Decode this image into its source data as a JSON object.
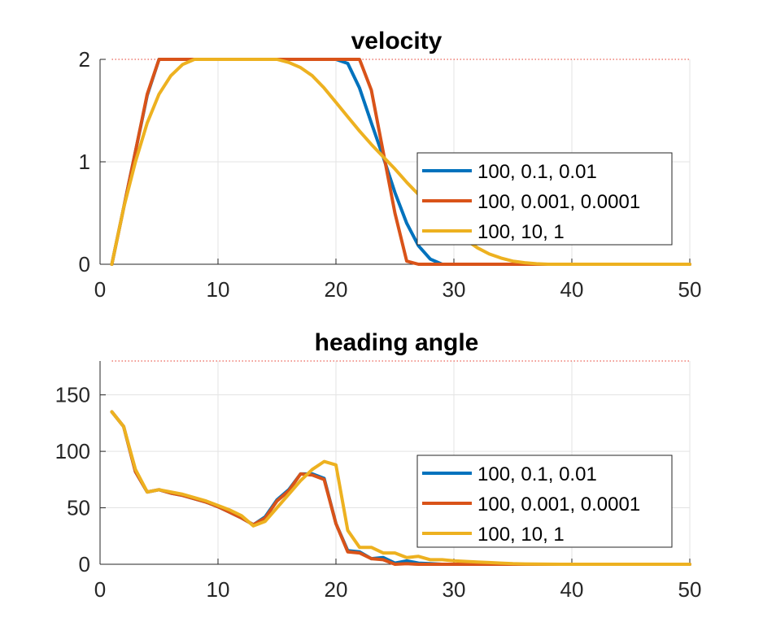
{
  "chart_data": [
    {
      "type": "line",
      "title": "velocity",
      "xlabel": "",
      "ylabel": "",
      "xlim": [
        0,
        50
      ],
      "ylim": [
        0,
        2
      ],
      "xticks": [
        0,
        10,
        20,
        30,
        40,
        50
      ],
      "yticks": [
        0,
        1,
        2
      ],
      "grid": true,
      "legend_position": "center-right",
      "reference_lines": [
        0,
        2
      ],
      "x": [
        1,
        2,
        3,
        4,
        5,
        6,
        7,
        8,
        9,
        10,
        11,
        12,
        13,
        14,
        15,
        16,
        17,
        18,
        19,
        20,
        21,
        22,
        23,
        24,
        25,
        26,
        27,
        28,
        29,
        30,
        31,
        32,
        33,
        34,
        35,
        36,
        37,
        38,
        39,
        40,
        41,
        42,
        43,
        44,
        45,
        46,
        47,
        48,
        49,
        50
      ],
      "series": [
        {
          "name": "100, 0.1, 0.01",
          "color": "#0072BD",
          "values": [
            0,
            0.55,
            1.1,
            1.65,
            2,
            2,
            2,
            2,
            2,
            2,
            2,
            2,
            2,
            2,
            2,
            2,
            2,
            2,
            2,
            2,
            1.96,
            1.72,
            1.38,
            1.05,
            0.7,
            0.4,
            0.18,
            0.05,
            0,
            0,
            0,
            0,
            0,
            0,
            0,
            0,
            0,
            0,
            0,
            0,
            0,
            0,
            0,
            0,
            0,
            0,
            0,
            0,
            0,
            0
          ]
        },
        {
          "name": "100, 0.001, 0.0001",
          "color": "#D95319",
          "values": [
            0,
            0.55,
            1.1,
            1.66,
            2,
            2,
            2,
            2,
            2,
            2,
            2,
            2,
            2,
            2,
            2,
            2,
            2,
            2,
            2,
            2,
            2,
            2,
            1.7,
            1.1,
            0.5,
            0.03,
            0,
            0,
            0,
            0,
            0,
            0,
            0,
            0,
            0,
            0,
            0,
            0,
            0,
            0,
            0,
            0,
            0,
            0,
            0,
            0,
            0,
            0,
            0,
            0
          ]
        },
        {
          "name": "100, 10, 1",
          "color": "#EDB120",
          "values": [
            0,
            0.55,
            1.0,
            1.38,
            1.66,
            1.84,
            1.95,
            2,
            2,
            2,
            2,
            2,
            2,
            2,
            2,
            1.97,
            1.92,
            1.84,
            1.72,
            1.58,
            1.44,
            1.3,
            1.17,
            1.05,
            0.93,
            0.8,
            0.68,
            0.56,
            0.44,
            0.33,
            0.24,
            0.16,
            0.1,
            0.06,
            0.03,
            0.015,
            0.005,
            0,
            0,
            0,
            0,
            0,
            0,
            0,
            0,
            0,
            0,
            0,
            0,
            0
          ]
        }
      ]
    },
    {
      "type": "line",
      "title": "heading angle",
      "xlabel": "",
      "ylabel": "",
      "xlim": [
        0,
        50
      ],
      "ylim": [
        0,
        180
      ],
      "xticks": [
        0,
        10,
        20,
        30,
        40,
        50
      ],
      "yticks": [
        0,
        50,
        100,
        150
      ],
      "grid": true,
      "legend_position": "center-right",
      "reference_lines": [
        0,
        180
      ],
      "x": [
        1,
        2,
        3,
        4,
        5,
        6,
        7,
        8,
        9,
        10,
        11,
        12,
        13,
        14,
        15,
        16,
        17,
        18,
        19,
        20,
        21,
        22,
        23,
        24,
        25,
        26,
        27,
        28,
        29,
        30,
        31,
        32,
        33,
        34,
        35,
        36,
        37,
        38,
        39,
        40,
        41,
        42,
        43,
        44,
        45,
        46,
        47,
        48,
        49,
        50
      ],
      "series": [
        {
          "name": "100, 0.1, 0.01",
          "color": "#0072BD",
          "values": [
            135,
            122,
            82,
            64,
            66,
            63,
            61,
            58,
            55,
            51,
            46,
            41,
            35,
            42,
            57,
            66,
            80,
            80,
            76,
            36,
            12,
            11,
            5,
            6,
            1,
            3,
            1,
            0.5,
            0,
            0,
            0,
            0,
            0,
            0,
            0,
            0,
            0,
            0,
            0,
            0,
            0,
            0,
            0,
            0,
            0,
            0,
            0,
            0,
            0,
            0
          ]
        },
        {
          "name": "100, 0.001, 0.0001",
          "color": "#D95319",
          "values": [
            135,
            122,
            82,
            64,
            66,
            63,
            61,
            58,
            55,
            51,
            46,
            41,
            35,
            41,
            56,
            65,
            80,
            79,
            75,
            36,
            11,
            10,
            5,
            4,
            0,
            0.5,
            0,
            0,
            0,
            0,
            0,
            0,
            0,
            0,
            0,
            0,
            0,
            0,
            0,
            0,
            0,
            0,
            0,
            0,
            0,
            0,
            0,
            0,
            0,
            0
          ]
        },
        {
          "name": "100, 10, 1",
          "color": "#EDB120",
          "values": [
            135,
            122,
            84,
            64,
            66,
            64,
            62,
            59,
            56,
            52,
            48,
            43,
            34,
            38,
            50,
            62,
            74,
            84,
            91,
            88,
            30,
            15,
            15,
            10,
            10,
            6,
            7,
            4,
            4,
            3,
            2.5,
            2,
            1.5,
            1,
            0.5,
            0.3,
            0.2,
            0.1,
            0,
            0,
            0,
            0,
            0,
            0,
            0,
            0,
            0,
            0,
            0,
            0
          ]
        }
      ]
    }
  ]
}
